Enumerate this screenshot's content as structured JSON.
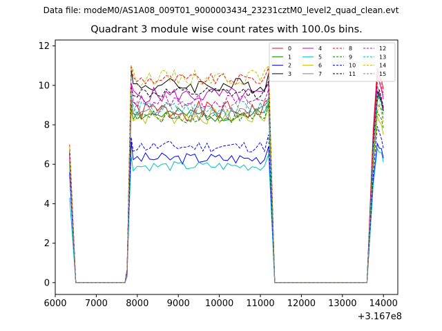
{
  "chart_data": {
    "type": "line",
    "suptitle": "Data file: modeM0/AS1A08_009T01_9000003434_23231cztM0_level2_quad_clean.evt",
    "title": "Quadrant 3 module wise count rates with 100.0s bins.",
    "xlabel": "",
    "ylabel": "",
    "x_offset_text": "+3.167e8",
    "xlim": [
      6000,
      14350
    ],
    "ylim": [
      -0.6,
      12.3
    ],
    "xticks": [
      6000,
      7000,
      8000,
      9000,
      10000,
      11000,
      12000,
      13000,
      14000
    ],
    "yticks": [
      0,
      2,
      4,
      6,
      8,
      10,
      12
    ],
    "legend_position": "top-right",
    "series": [
      {
        "name": "0",
        "color": "#ff0000",
        "dash": "solid",
        "level": 8.7,
        "amp": 0.5,
        "start": 6.5,
        "end_val": 10.3,
        "seed": 1
      },
      {
        "name": "1",
        "color": "#008000",
        "dash": "solid",
        "level": 8.5,
        "amp": 0.35,
        "start": 6.0,
        "end_val": 9.2,
        "seed": 2
      },
      {
        "name": "2",
        "color": "#0000ff",
        "dash": "solid",
        "level": 6.3,
        "amp": 0.3,
        "start": 5.5,
        "end_val": 6.8,
        "seed": 3
      },
      {
        "name": "3",
        "color": "#000000",
        "dash": "solid",
        "level": 10.0,
        "amp": 0.4,
        "start": 6.7,
        "end_val": 9.2,
        "seed": 4
      },
      {
        "name": "4",
        "color": "#bf00bf",
        "dash": "solid",
        "level": 9.5,
        "amp": 0.4,
        "start": 6.3,
        "end_val": 9.8,
        "seed": 5
      },
      {
        "name": "5",
        "color": "#00bfbf",
        "dash": "solid",
        "level": 5.9,
        "amp": 0.25,
        "start": 4.3,
        "end_val": 6.6,
        "seed": 6
      },
      {
        "name": "6",
        "color": "#bfbf00",
        "dash": "solid",
        "level": 8.4,
        "amp": 0.4,
        "start": 6.0,
        "end_val": 8.0,
        "seed": 7
      },
      {
        "name": "7",
        "color": "#808080",
        "dash": "solid",
        "level": 8.6,
        "amp": 0.45,
        "start": 6.2,
        "end_val": 9.3,
        "seed": 8
      },
      {
        "name": "8",
        "color": "#ff0000",
        "dash": "dashed",
        "level": 10.3,
        "amp": 0.3,
        "start": 7.0,
        "end_val": 10.0,
        "seed": 9
      },
      {
        "name": "9",
        "color": "#008000",
        "dash": "dashed",
        "level": 8.4,
        "amp": 0.3,
        "start": 6.1,
        "end_val": 8.3,
        "seed": 10
      },
      {
        "name": "10",
        "color": "#0000ff",
        "dash": "dashed",
        "level": 6.9,
        "amp": 0.3,
        "start": 5.6,
        "end_val": 7.3,
        "seed": 11
      },
      {
        "name": "11",
        "color": "#000000",
        "dash": "dashed",
        "level": 9.6,
        "amp": 0.3,
        "start": 6.6,
        "end_val": 9.3,
        "seed": 12
      },
      {
        "name": "12",
        "color": "#bf00bf",
        "dash": "dashed",
        "level": 9.2,
        "amp": 0.35,
        "start": 6.4,
        "end_val": 9.4,
        "seed": 13
      },
      {
        "name": "13",
        "color": "#00bfbf",
        "dash": "dashed",
        "level": 8.8,
        "amp": 0.4,
        "start": 5.9,
        "end_val": 9.0,
        "seed": 14
      },
      {
        "name": "14",
        "color": "#bfbf00",
        "dash": "dashed",
        "level": 10.4,
        "amp": 0.4,
        "start": 6.9,
        "end_val": 8.6,
        "seed": 15
      },
      {
        "name": "15",
        "color": "#808080",
        "dash": "dashed",
        "level": 8.8,
        "amp": 0.4,
        "start": 6.1,
        "end_val": 8.8,
        "seed": 16
      }
    ]
  }
}
